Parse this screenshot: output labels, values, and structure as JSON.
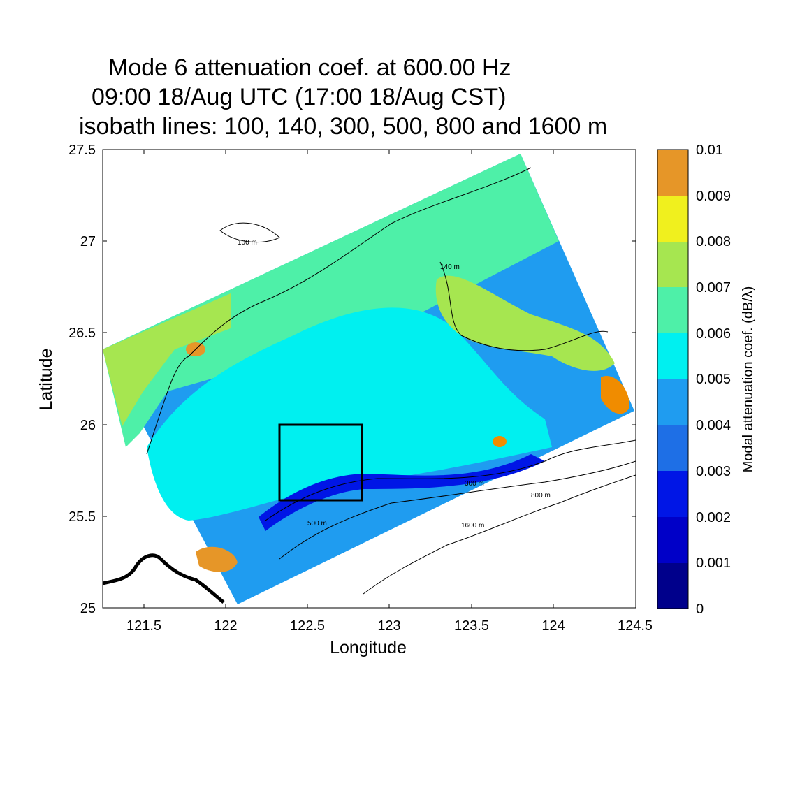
{
  "title": {
    "line1": "Mode 6 attenuation coef. at 600.00 Hz",
    "line2": "09:00 18/Aug UTC (17:00 18/Aug CST)",
    "line3": "isobath lines: 100, 140, 300, 500, 800 and 1600 m"
  },
  "axes": {
    "xlabel": "Longitude",
    "ylabel": "Latitude",
    "xlim": [
      121.25,
      124.5
    ],
    "ylim": [
      25,
      27.5
    ],
    "xticks": [
      "121.5",
      "122",
      "122.5",
      "123",
      "123.5",
      "124",
      "124.5"
    ],
    "yticks": [
      "25",
      "25.5",
      "26",
      "26.5",
      "27",
      "27.5"
    ]
  },
  "colorbar": {
    "label": "Modal attenuation coef. (dB/λ)",
    "ticks": [
      "0",
      "0.001",
      "0.002",
      "0.003",
      "0.004",
      "0.005",
      "0.006",
      "0.007",
      "0.008",
      "0.009",
      "0.01"
    ],
    "colors": [
      "#00008b",
      "#0000c8",
      "#0016e6",
      "#1e6fe6",
      "#1f9cf0",
      "#00f0f0",
      "#4ef0a8",
      "#a6e650",
      "#f0f01e",
      "#e69628",
      "#f08c00"
    ]
  },
  "isobath_labels": [
    "100 m",
    "140 m",
    "300 m",
    "500 m",
    "800 m",
    "1600 m"
  ],
  "study_box": {
    "lon": [
      122.33,
      122.83
    ],
    "lat": [
      25.59,
      26.0
    ]
  }
}
